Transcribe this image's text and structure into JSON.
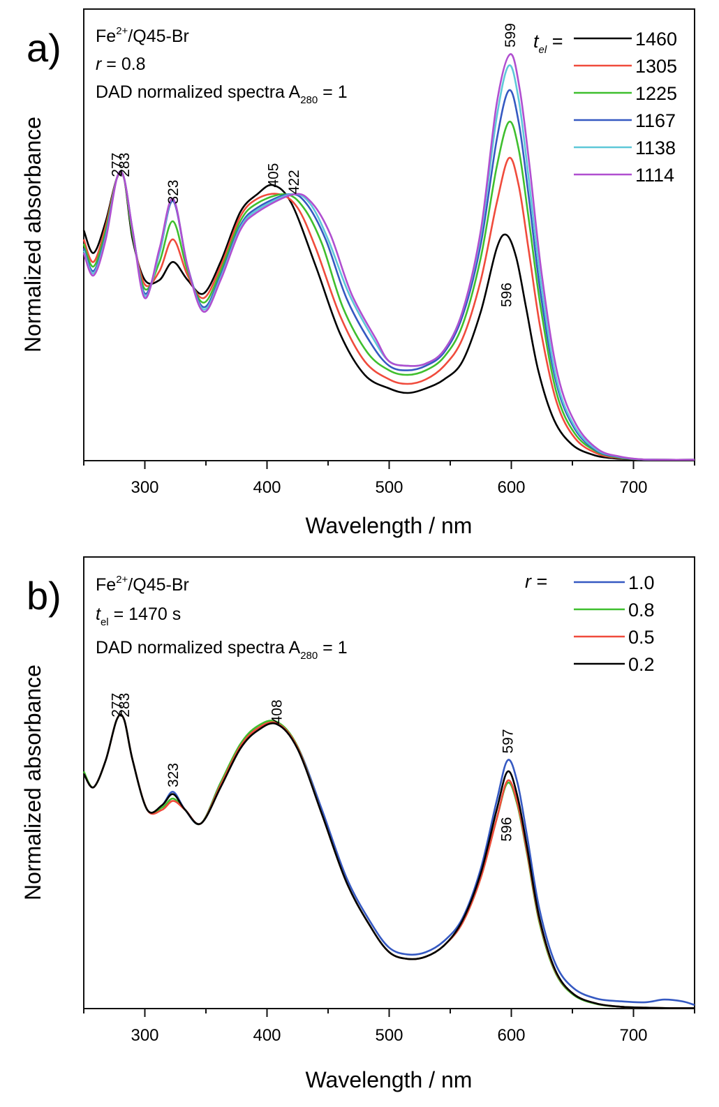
{
  "chart_data": [
    {
      "type": "line",
      "panel_label": "a)",
      "annotations": {
        "system": "Fe2+/Q45-Br",
        "system_base": "Fe",
        "system_sup": "2+",
        "system_rest": "/Q45-Br",
        "param_var": "r",
        "param_rest": " = 0.8",
        "spectra_text": "DAD normalized spectra A",
        "spectra_sub": "280",
        "spectra_end": " = 1"
      },
      "xlabel": "Wavelength / nm",
      "ylabel": "Normalized absorbance",
      "xlim": [
        250,
        750
      ],
      "ylim": [
        0,
        1.0
      ],
      "x_ticks": [
        300,
        400,
        500,
        600,
        700
      ],
      "y_ticks_shown": false,
      "grid": false,
      "legend": {
        "title_var": "t",
        "title_sub": "el",
        "title_end": " =",
        "placement": "top-right"
      },
      "peak_labels": [
        {
          "text": "277",
          "x": 277,
          "y": 0.628
        },
        {
          "text": "283",
          "x": 283,
          "y": 0.628
        },
        {
          "text": "323",
          "x": 323,
          "y": 0.568
        },
        {
          "text": "405",
          "x": 405,
          "y": 0.605
        },
        {
          "text": "422",
          "x": 422,
          "y": 0.59
        },
        {
          "text": "599",
          "x": 599,
          "y": 0.915
        },
        {
          "text": "596",
          "x": 596,
          "y": 0.34
        }
      ],
      "series": [
        {
          "name": "1460",
          "color": "#000000",
          "x": [
            250,
            258,
            268,
            277,
            283,
            290,
            300,
            312,
            323,
            335,
            348,
            362,
            378,
            392,
            405,
            420,
            440,
            460,
            480,
            500,
            515,
            530,
            545,
            560,
            575,
            588,
            596,
            604,
            612,
            622,
            635,
            650,
            668,
            685,
            700,
            720,
            750
          ],
          "y": [
            0.51,
            0.46,
            0.53,
            0.625,
            0.625,
            0.49,
            0.4,
            0.4,
            0.44,
            0.4,
            0.37,
            0.44,
            0.55,
            0.59,
            0.61,
            0.57,
            0.43,
            0.28,
            0.19,
            0.16,
            0.15,
            0.16,
            0.18,
            0.22,
            0.33,
            0.47,
            0.5,
            0.45,
            0.34,
            0.2,
            0.09,
            0.035,
            0.012,
            0.005,
            0.003,
            0.002,
            0.002
          ]
        },
        {
          "name": "1305",
          "color": "#f04b3c",
          "x": [
            250,
            258,
            268,
            277,
            283,
            290,
            300,
            312,
            323,
            335,
            348,
            362,
            378,
            392,
            410,
            425,
            440,
            460,
            480,
            500,
            515,
            530,
            545,
            560,
            575,
            588,
            598,
            606,
            614,
            624,
            637,
            652,
            670,
            688,
            705,
            725,
            750
          ],
          "y": [
            0.49,
            0.44,
            0.52,
            0.625,
            0.625,
            0.5,
            0.39,
            0.42,
            0.49,
            0.41,
            0.36,
            0.43,
            0.54,
            0.58,
            0.59,
            0.56,
            0.47,
            0.32,
            0.22,
            0.18,
            0.17,
            0.18,
            0.21,
            0.27,
            0.4,
            0.57,
            0.67,
            0.61,
            0.47,
            0.29,
            0.13,
            0.05,
            0.016,
            0.006,
            0.003,
            0.002,
            0.002
          ]
        },
        {
          "name": "1225",
          "color": "#3fbf2e",
          "x": [
            250,
            258,
            268,
            277,
            283,
            290,
            300,
            312,
            323,
            335,
            348,
            362,
            378,
            392,
            415,
            430,
            445,
            462,
            482,
            500,
            515,
            530,
            545,
            560,
            575,
            588,
            598,
            606,
            614,
            624,
            637,
            652,
            670,
            688,
            705,
            725,
            750
          ],
          "y": [
            0.48,
            0.43,
            0.51,
            0.625,
            0.625,
            0.5,
            0.38,
            0.44,
            0.53,
            0.42,
            0.35,
            0.42,
            0.53,
            0.57,
            0.59,
            0.56,
            0.48,
            0.34,
            0.24,
            0.2,
            0.19,
            0.2,
            0.23,
            0.3,
            0.45,
            0.65,
            0.75,
            0.69,
            0.54,
            0.34,
            0.15,
            0.06,
            0.02,
            0.007,
            0.003,
            0.002,
            0.002
          ]
        },
        {
          "name": "1167",
          "color": "#3559c2",
          "x": [
            250,
            258,
            268,
            277,
            283,
            290,
            300,
            312,
            323,
            335,
            348,
            362,
            378,
            392,
            418,
            432,
            448,
            465,
            485,
            500,
            515,
            530,
            545,
            560,
            575,
            588,
            598,
            606,
            614,
            624,
            637,
            652,
            670,
            688,
            705,
            725,
            750
          ],
          "y": [
            0.47,
            0.42,
            0.5,
            0.625,
            0.625,
            0.51,
            0.37,
            0.46,
            0.575,
            0.43,
            0.34,
            0.41,
            0.52,
            0.56,
            0.59,
            0.57,
            0.49,
            0.36,
            0.26,
            0.21,
            0.2,
            0.21,
            0.24,
            0.32,
            0.48,
            0.71,
            0.82,
            0.75,
            0.59,
            0.37,
            0.17,
            0.07,
            0.022,
            0.008,
            0.003,
            0.002,
            0.002
          ]
        },
        {
          "name": "1138",
          "color": "#5ec8d8",
          "x": [
            250,
            258,
            268,
            277,
            283,
            290,
            300,
            312,
            323,
            335,
            348,
            362,
            378,
            392,
            420,
            435,
            450,
            467,
            487,
            500,
            515,
            530,
            545,
            560,
            575,
            588,
            598,
            606,
            614,
            624,
            637,
            652,
            670,
            688,
            705,
            725,
            750
          ],
          "y": [
            0.465,
            0.415,
            0.495,
            0.625,
            0.625,
            0.51,
            0.365,
            0.46,
            0.58,
            0.43,
            0.335,
            0.405,
            0.515,
            0.555,
            0.59,
            0.57,
            0.49,
            0.37,
            0.27,
            0.22,
            0.21,
            0.215,
            0.245,
            0.33,
            0.5,
            0.76,
            0.875,
            0.8,
            0.63,
            0.4,
            0.18,
            0.075,
            0.024,
            0.009,
            0.003,
            0.002,
            0.002
          ]
        },
        {
          "name": "1114",
          "color": "#b04fd0",
          "x": [
            250,
            258,
            268,
            277,
            283,
            290,
            300,
            312,
            323,
            335,
            348,
            362,
            378,
            392,
            422,
            437,
            452,
            469,
            489,
            500,
            515,
            530,
            545,
            560,
            575,
            588,
            599,
            607,
            615,
            625,
            638,
            653,
            671,
            689,
            706,
            726,
            750
          ],
          "y": [
            0.46,
            0.41,
            0.49,
            0.625,
            0.625,
            0.51,
            0.36,
            0.47,
            0.58,
            0.43,
            0.33,
            0.4,
            0.51,
            0.55,
            0.59,
            0.57,
            0.5,
            0.37,
            0.27,
            0.22,
            0.21,
            0.215,
            0.245,
            0.33,
            0.51,
            0.79,
            0.9,
            0.82,
            0.65,
            0.41,
            0.19,
            0.08,
            0.025,
            0.009,
            0.003,
            0.002,
            0.002
          ]
        }
      ]
    },
    {
      "type": "line",
      "panel_label": "b)",
      "annotations": {
        "system": "Fe2+/Q45-Br",
        "system_base": "Fe",
        "system_sup": "2+",
        "system_rest": "/Q45-Br",
        "param_var": "t",
        "param_sub": "el",
        "param_rest": " = 1470 s",
        "spectra_text": "DAD normalized spectra A",
        "spectra_sub": "280",
        "spectra_end": " = 1"
      },
      "xlabel": "Wavelength / nm",
      "ylabel": "Normalized absorbance",
      "xlim": [
        250,
        750
      ],
      "ylim": [
        0,
        1.0
      ],
      "x_ticks": [
        300,
        400,
        500,
        600,
        700
      ],
      "y_ticks_shown": false,
      "grid": false,
      "legend": {
        "title_var": "r",
        "title_end": " =",
        "placement": "top-right"
      },
      "peak_labels": [
        {
          "text": "277",
          "x": 277,
          "y": 0.645
        },
        {
          "text": "283",
          "x": 283,
          "y": 0.645
        },
        {
          "text": "323",
          "x": 323,
          "y": 0.49
        },
        {
          "text": "408",
          "x": 408,
          "y": 0.63
        },
        {
          "text": "597",
          "x": 597,
          "y": 0.565
        },
        {
          "text": "596",
          "x": 596,
          "y": 0.37
        }
      ],
      "series": [
        {
          "name": "1.0",
          "color": "#3559c2",
          "x": [
            250,
            258,
            268,
            277,
            283,
            290,
            302,
            314,
            323,
            333,
            346,
            362,
            378,
            392,
            408,
            425,
            445,
            465,
            485,
            500,
            515,
            530,
            545,
            560,
            575,
            588,
            597,
            605,
            613,
            623,
            636,
            651,
            670,
            690,
            710,
            725,
            740,
            750
          ],
          "y": [
            0.52,
            0.49,
            0.55,
            0.64,
            0.64,
            0.55,
            0.44,
            0.45,
            0.48,
            0.44,
            0.41,
            0.5,
            0.58,
            0.62,
            0.63,
            0.58,
            0.44,
            0.29,
            0.19,
            0.135,
            0.12,
            0.125,
            0.15,
            0.2,
            0.31,
            0.46,
            0.55,
            0.5,
            0.38,
            0.22,
            0.1,
            0.045,
            0.022,
            0.016,
            0.014,
            0.02,
            0.016,
            0.008
          ]
        },
        {
          "name": "0.8",
          "color": "#3fbf2e",
          "x": [
            250,
            258,
            268,
            277,
            283,
            290,
            302,
            314,
            323,
            333,
            346,
            362,
            378,
            392,
            408,
            425,
            445,
            465,
            485,
            500,
            515,
            530,
            545,
            560,
            575,
            588,
            597,
            605,
            613,
            623,
            636,
            651,
            670,
            690,
            710,
            730,
            750
          ],
          "y": [
            0.525,
            0.49,
            0.55,
            0.64,
            0.64,
            0.55,
            0.44,
            0.445,
            0.465,
            0.44,
            0.41,
            0.5,
            0.585,
            0.625,
            0.635,
            0.58,
            0.43,
            0.28,
            0.18,
            0.125,
            0.11,
            0.115,
            0.14,
            0.19,
            0.29,
            0.42,
            0.5,
            0.45,
            0.34,
            0.19,
            0.08,
            0.03,
            0.01,
            0.004,
            0.002,
            0.001,
            0.001
          ]
        },
        {
          "name": "0.5",
          "color": "#f04b3c",
          "x": [
            250,
            258,
            268,
            277,
            283,
            290,
            302,
            314,
            323,
            333,
            346,
            362,
            378,
            392,
            408,
            425,
            445,
            465,
            485,
            500,
            515,
            530,
            545,
            560,
            575,
            588,
            597,
            605,
            613,
            623,
            636,
            651,
            670,
            690,
            710,
            730,
            750
          ],
          "y": [
            0.52,
            0.49,
            0.55,
            0.64,
            0.64,
            0.55,
            0.44,
            0.44,
            0.46,
            0.44,
            0.41,
            0.495,
            0.58,
            0.62,
            0.632,
            0.578,
            0.43,
            0.28,
            0.18,
            0.125,
            0.11,
            0.115,
            0.14,
            0.19,
            0.29,
            0.42,
            0.505,
            0.455,
            0.345,
            0.195,
            0.083,
            0.032,
            0.011,
            0.004,
            0.002,
            0.001,
            0.001
          ]
        },
        {
          "name": "0.2",
          "color": "#000000",
          "x": [
            250,
            258,
            268,
            277,
            283,
            290,
            302,
            314,
            323,
            333,
            346,
            362,
            378,
            392,
            408,
            425,
            445,
            465,
            485,
            500,
            515,
            530,
            545,
            560,
            575,
            588,
            597,
            605,
            613,
            623,
            636,
            651,
            670,
            690,
            710,
            730,
            750
          ],
          "y": [
            0.52,
            0.49,
            0.55,
            0.64,
            0.64,
            0.55,
            0.44,
            0.45,
            0.475,
            0.44,
            0.41,
            0.49,
            0.575,
            0.615,
            0.63,
            0.575,
            0.43,
            0.28,
            0.18,
            0.125,
            0.11,
            0.115,
            0.14,
            0.195,
            0.3,
            0.44,
            0.525,
            0.47,
            0.355,
            0.2,
            0.085,
            0.032,
            0.011,
            0.004,
            0.002,
            0.001,
            0.001
          ]
        }
      ]
    }
  ]
}
